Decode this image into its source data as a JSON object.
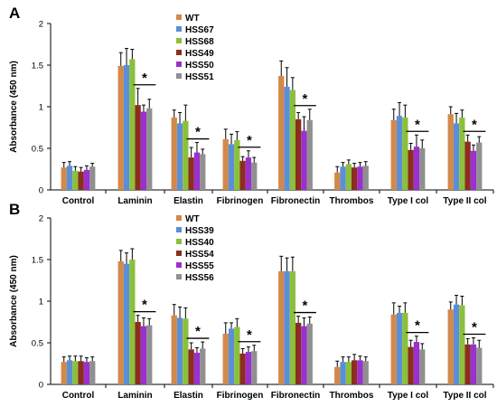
{
  "colors": {
    "wt": "#D2894A",
    "hss_blue": "#5A8FD8",
    "hss_green": "#8CBF3C",
    "hss_darkred": "#8B2E1E",
    "hss_purple": "#9B2FD0",
    "hss_gray": "#909090",
    "axis": "#000000",
    "error_bar": "#000000"
  },
  "chart_data": [
    {
      "type": "bar",
      "panel_label": "A",
      "title": "",
      "xlabel": "",
      "ylabel": "Absorbance (450 nm)",
      "ylim": [
        0,
        2
      ],
      "yticks": [
        "0",
        "0.5",
        "1",
        "1.5",
        "2"
      ],
      "legend_position": "top-center",
      "categories": [
        "Control",
        "Laminin",
        "Elastin",
        "Fibrinogen",
        "Fibronectin",
        "Thrombos",
        "Type I col",
        "Type II col"
      ],
      "significance_marker": "*",
      "significant_categories": [
        "Laminin",
        "Elastin",
        "Fibrinogen",
        "Fibronectin",
        "Type I col",
        "Type II col"
      ],
      "series": [
        {
          "name": "WT",
          "values": [
            0.27,
            1.49,
            0.87,
            0.61,
            1.37,
            0.21,
            0.84,
            0.91
          ],
          "errors": [
            0.06,
            0.16,
            0.09,
            0.12,
            0.18,
            0.07,
            0.13,
            0.09
          ]
        },
        {
          "name": "HSS67",
          "values": [
            0.29,
            1.5,
            0.8,
            0.55,
            1.24,
            0.28,
            0.89,
            0.8
          ],
          "errors": [
            0.05,
            0.2,
            0.13,
            0.12,
            0.23,
            0.05,
            0.16,
            0.12
          ]
        },
        {
          "name": "HSS68",
          "values": [
            0.23,
            1.57,
            0.83,
            0.6,
            1.2,
            0.31,
            0.87,
            0.87
          ],
          "errors": [
            0.05,
            0.12,
            0.19,
            0.1,
            0.15,
            0.05,
            0.15,
            0.09
          ]
        },
        {
          "name": "HSS49",
          "values": [
            0.22,
            1.02,
            0.39,
            0.35,
            0.85,
            0.27,
            0.48,
            0.58
          ],
          "errors": [
            0.05,
            0.2,
            0.12,
            0.05,
            0.08,
            0.05,
            0.08,
            0.08
          ]
        },
        {
          "name": "HSS50",
          "values": [
            0.24,
            0.94,
            0.45,
            0.39,
            0.71,
            0.28,
            0.52,
            0.47
          ],
          "errors": [
            0.05,
            0.08,
            0.12,
            0.08,
            0.17,
            0.05,
            0.14,
            0.07
          ]
        },
        {
          "name": "HSS51",
          "values": [
            0.28,
            0.98,
            0.43,
            0.33,
            0.84,
            0.29,
            0.5,
            0.57
          ],
          "errors": [
            0.04,
            0.11,
            0.06,
            0.06,
            0.13,
            0.05,
            0.1,
            0.07
          ]
        }
      ]
    },
    {
      "type": "bar",
      "panel_label": "B",
      "title": "",
      "xlabel": "",
      "ylabel": "Absorbance (450 nm)",
      "ylim": [
        0,
        2
      ],
      "yticks": [
        "0",
        "0.5",
        "1",
        "1.5",
        "2"
      ],
      "legend_position": "top-center",
      "categories": [
        "Control",
        "Laminin",
        "Elastin",
        "Fibrinogen",
        "Fibronectin",
        "Thrombos",
        "Type I col",
        "Type II col"
      ],
      "significance_marker": "*",
      "significant_categories": [
        "Laminin",
        "Elastin",
        "Fibrinogen",
        "Fibronectin",
        "Type I col",
        "Type II col"
      ],
      "series": [
        {
          "name": "WT",
          "values": [
            0.27,
            1.48,
            0.83,
            0.61,
            1.36,
            0.21,
            0.84,
            0.9
          ],
          "errors": [
            0.06,
            0.13,
            0.13,
            0.13,
            0.18,
            0.07,
            0.14,
            0.09
          ]
        },
        {
          "name": "HSS39",
          "values": [
            0.29,
            1.45,
            0.8,
            0.67,
            1.36,
            0.27,
            0.86,
            0.96
          ],
          "errors": [
            0.05,
            0.13,
            0.13,
            0.07,
            0.16,
            0.06,
            0.08,
            0.11
          ]
        },
        {
          "name": "HSS40",
          "values": [
            0.28,
            1.5,
            0.79,
            0.69,
            1.36,
            0.27,
            0.86,
            0.95
          ],
          "errors": [
            0.06,
            0.13,
            0.13,
            0.1,
            0.17,
            0.06,
            0.12,
            0.11
          ]
        },
        {
          "name": "HSS54",
          "values": [
            0.28,
            0.75,
            0.42,
            0.37,
            0.74,
            0.29,
            0.45,
            0.48
          ],
          "errors": [
            0.06,
            0.08,
            0.08,
            0.06,
            0.08,
            0.07,
            0.08,
            0.07
          ]
        },
        {
          "name": "HSS55",
          "values": [
            0.27,
            0.7,
            0.38,
            0.39,
            0.7,
            0.29,
            0.51,
            0.48
          ],
          "errors": [
            0.05,
            0.1,
            0.06,
            0.06,
            0.1,
            0.05,
            0.07,
            0.08
          ]
        },
        {
          "name": "HSS56",
          "values": [
            0.28,
            0.71,
            0.43,
            0.4,
            0.73,
            0.28,
            0.42,
            0.44
          ],
          "errors": [
            0.05,
            0.08,
            0.08,
            0.07,
            0.08,
            0.05,
            0.07,
            0.09
          ]
        }
      ]
    }
  ]
}
